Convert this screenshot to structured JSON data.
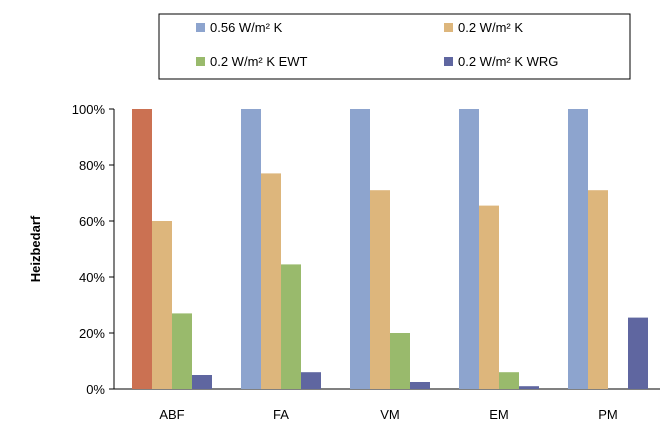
{
  "chart_data": {
    "type": "bar",
    "title": "",
    "xlabel": "",
    "ylabel": "Heizbedarf",
    "ylim": [
      0,
      100
    ],
    "yticks": [
      "0%",
      "20%",
      "40%",
      "60%",
      "80%",
      "100%"
    ],
    "grid": false,
    "legend_position": "top",
    "categories": [
      "ABF",
      "FA",
      "VM",
      "EM",
      "PM"
    ],
    "series": [
      {
        "name": "0.56 W/m² K",
        "color": "#8DA4CE",
        "values": [
          100,
          100,
          100,
          100,
          100
        ]
      },
      {
        "name": "0.2 W/m² K",
        "color": "#DDB67C",
        "values": [
          60,
          77,
          71,
          65.5,
          71
        ]
      },
      {
        "name": "0.2 W/m² K EWT",
        "color": "#99BA6C",
        "values": [
          27,
          44.5,
          20,
          6,
          null
        ]
      },
      {
        "name": "0.2 W/m² K WRG",
        "color": "#5F66A0",
        "values": [
          5,
          6,
          2.5,
          1,
          25.5
        ]
      }
    ],
    "highlight": {
      "category": "ABF",
      "series": "0.56 W/m² K",
      "color": "#CB7152"
    }
  }
}
